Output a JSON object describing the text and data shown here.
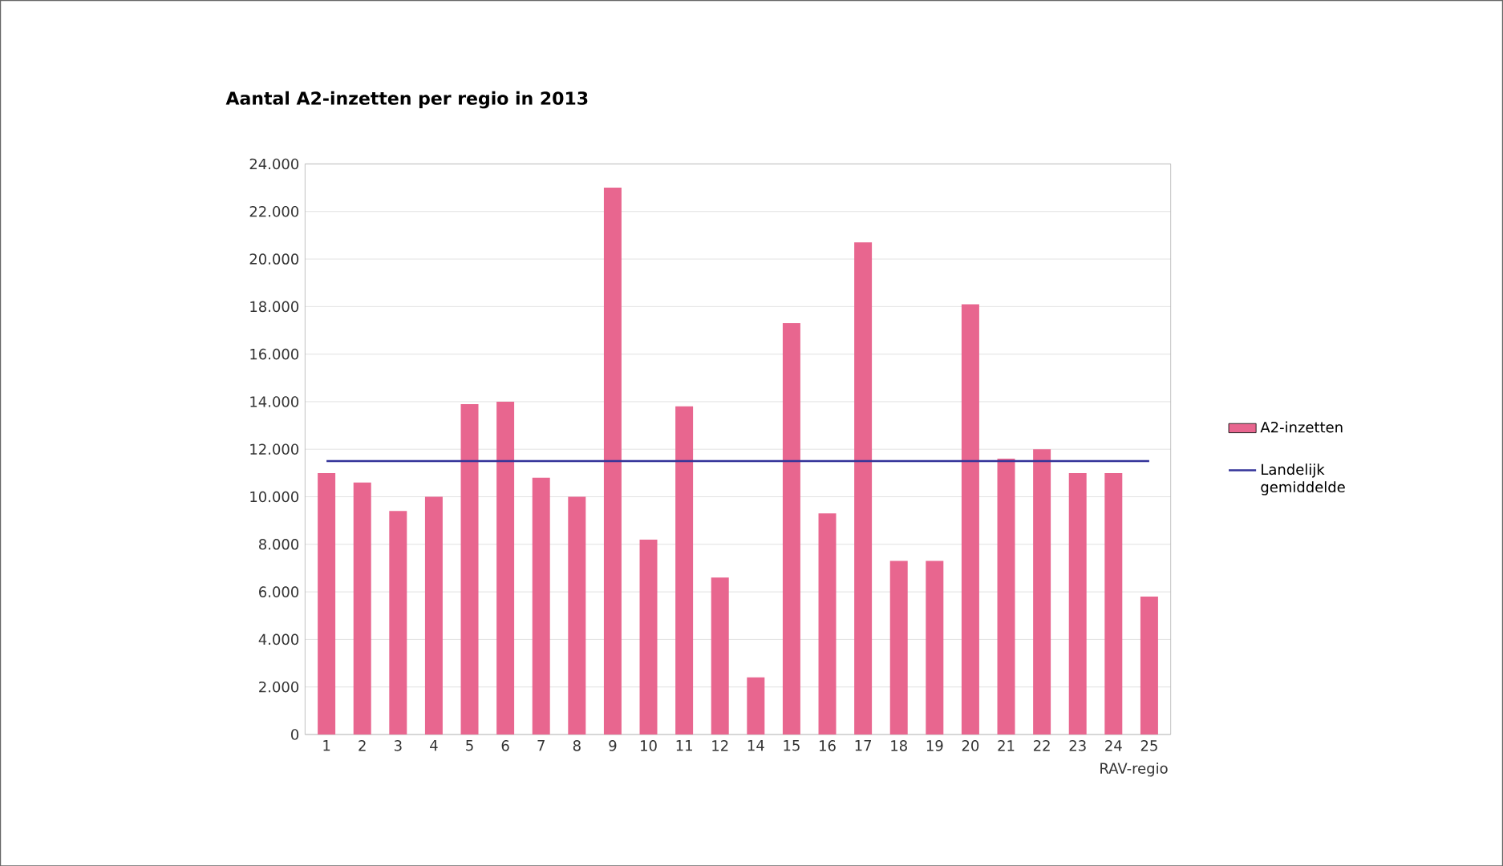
{
  "chart_data": {
    "type": "bar",
    "title": "Aantal A2-inzetten per regio in 2013",
    "xlabel": "RAV-regio",
    "categories": [
      "1",
      "2",
      "3",
      "4",
      "5",
      "6",
      "7",
      "8",
      "9",
      "10",
      "11",
      "12",
      "14",
      "15",
      "16",
      "17",
      "18",
      "19",
      "20",
      "21",
      "22",
      "23",
      "24",
      "25"
    ],
    "series": [
      {
        "name": "A2-inzetten",
        "color": "#e8668f",
        "values": [
          11000,
          10600,
          9400,
          10000,
          13900,
          14000,
          10800,
          10000,
          23000,
          8200,
          13800,
          6600,
          2400,
          17300,
          9300,
          20700,
          7300,
          7300,
          18100,
          11600,
          12000,
          11000,
          11000,
          5800
        ]
      },
      {
        "name": "Landelijk gemiddelde",
        "type": "line",
        "color": "#333399",
        "values": [
          11500,
          11500,
          11500,
          11500,
          11500,
          11500,
          11500,
          11500,
          11500,
          11500,
          11500,
          11500,
          11500,
          11500,
          11500,
          11500,
          11500,
          11500,
          11500,
          11500,
          11500,
          11500,
          11500,
          11500
        ]
      }
    ],
    "ylim": [
      0,
      24000
    ],
    "yticks": [
      {
        "value": 0,
        "label": "0"
      },
      {
        "value": 2000,
        "label": "2.000"
      },
      {
        "value": 4000,
        "label": "4.000"
      },
      {
        "value": 6000,
        "label": "6.000"
      },
      {
        "value": 8000,
        "label": "8.000"
      },
      {
        "value": 10000,
        "label": "10.000"
      },
      {
        "value": 12000,
        "label": "12.000"
      },
      {
        "value": 14000,
        "label": "14.000"
      },
      {
        "value": 16000,
        "label": "16.000"
      },
      {
        "value": 18000,
        "label": "18.000"
      },
      {
        "value": 20000,
        "label": "20.000"
      },
      {
        "value": 22000,
        "label": "22.000"
      },
      {
        "value": 24000,
        "label": "24.000"
      }
    ],
    "grid": "y",
    "legend": "right"
  }
}
